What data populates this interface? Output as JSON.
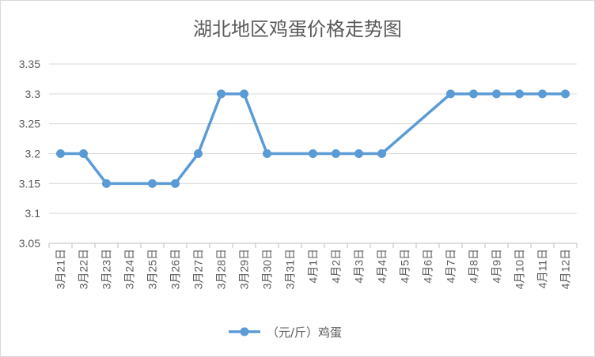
{
  "chart_data": {
    "type": "line",
    "title": "湖北地区鸡蛋价格走势图",
    "xlabel": "",
    "ylabel": "",
    "categories": [
      "3月21日",
      "3月22日",
      "3月23日",
      "3月24日",
      "3月25日",
      "3月26日",
      "3月27日",
      "3月28日",
      "3月29日",
      "3月30日",
      "3月31日",
      "4月1日",
      "4月2日",
      "4月3日",
      "4月4日",
      "4月5日",
      "4月6日",
      "4月7日",
      "4月8日",
      "4月9日",
      "4月10日",
      "4月11日",
      "4月12日"
    ],
    "series": [
      {
        "name": "（元/斤）鸡蛋",
        "values": [
          3.2,
          3.2,
          3.15,
          null,
          3.15,
          3.15,
          3.2,
          3.3,
          3.3,
          3.2,
          null,
          3.2,
          3.2,
          3.2,
          3.2,
          null,
          null,
          3.3,
          3.3,
          3.3,
          3.3,
          3.3,
          3.3
        ]
      }
    ],
    "y_ticks": [
      "3.05",
      "3.1",
      "3.15",
      "3.2",
      "3.25",
      "3.3",
      "3.35"
    ],
    "ylim": [
      3.05,
      3.35
    ],
    "grid": true,
    "legend_position": "bottom",
    "series_color": "#5b9bd5"
  }
}
